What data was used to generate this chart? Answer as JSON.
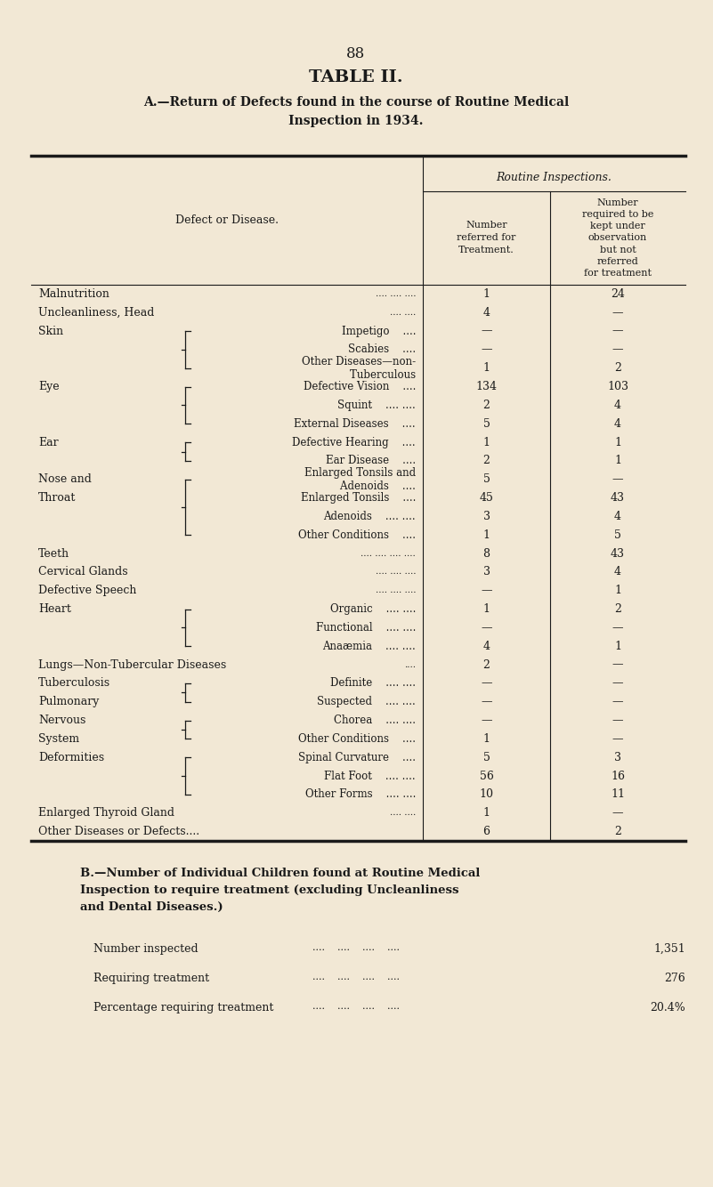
{
  "page_number": "88",
  "title": "TABLE II.",
  "subtitle": "A.—Return of Defects found in the course of Routine Medical\nInspection in 1934.",
  "bg_color": "#f2e8d5",
  "text_color": "#1a1a1a",
  "header_col1": "Defect or Disease.",
  "header_routine": "Routine Inspections.",
  "header_col2": "Number\nreferred for\nTreatment.",
  "header_col3": "Number\nrequired to be\nkept under\nobservation\nbut not\nreferred\nfor treatment",
  "rows": [
    {
      "cat": "Malnutrition",
      "dots_cat": ".... .... ....",
      "sub": "",
      "bracket": "",
      "col2": "1",
      "col3": "24"
    },
    {
      "cat": "Uncleanliness, Head",
      "dots_cat": ".... ....",
      "sub": "",
      "bracket": "",
      "col2": "4",
      "col3": "—"
    },
    {
      "cat": "Skin",
      "dots_cat": "....",
      "sub": "Impetigo    ....",
      "bracket": "top",
      "col2": "—",
      "col3": "—"
    },
    {
      "cat": "",
      "dots_cat": "",
      "sub": "Scabies    ....",
      "bracket": "mid",
      "col2": "—",
      "col3": "—"
    },
    {
      "cat": "",
      "dots_cat": "",
      "sub": "Other Diseases—non-\n        Tuberculous",
      "bracket": "bot",
      "col2": "1",
      "col3": "2"
    },
    {
      "cat": "Eye",
      "dots_cat": "....",
      "sub": "Defective Vision    ....",
      "bracket": "top",
      "col2": "134",
      "col3": "103"
    },
    {
      "cat": "",
      "dots_cat": "",
      "sub": "Squint    .... ....",
      "bracket": "mid",
      "col2": "2",
      "col3": "4"
    },
    {
      "cat": "",
      "dots_cat": "",
      "sub": "External Diseases    ....",
      "bracket": "bot",
      "col2": "5",
      "col3": "4"
    },
    {
      "cat": "Ear",
      "dots_cat": "....",
      "sub": "Defective Hearing    ....",
      "bracket": "top",
      "col2": "1",
      "col3": "1"
    },
    {
      "cat": "",
      "dots_cat": "",
      "sub": "Ear Disease    ....",
      "bracket": "bot",
      "col2": "2",
      "col3": "1"
    },
    {
      "cat": "Nose and",
      "dots_cat": "",
      "sub": "Enlarged Tonsils and\n        Adenoids    ....",
      "bracket": "top",
      "col2": "5",
      "col3": "—"
    },
    {
      "cat": "Throat",
      "dots_cat": "....",
      "sub": "Enlarged Tonsils    ....",
      "bracket": "mid",
      "col2": "45",
      "col3": "43"
    },
    {
      "cat": "",
      "dots_cat": "",
      "sub": "Adenoids    .... ....",
      "bracket": "mid",
      "col2": "3",
      "col3": "4"
    },
    {
      "cat": "",
      "dots_cat": "",
      "sub": "Other Conditions    ....",
      "bracket": "bot",
      "col2": "1",
      "col3": "5"
    },
    {
      "cat": "Teeth",
      "dots_cat": ".... .... .... ....",
      "sub": "",
      "bracket": "",
      "col2": "8",
      "col3": "43"
    },
    {
      "cat": "Cervical Glands",
      "dots_cat": ".... .... ....",
      "sub": "",
      "bracket": "",
      "col2": "3",
      "col3": "4"
    },
    {
      "cat": "Defective Speech",
      "dots_cat": ".... .... ....",
      "sub": "",
      "bracket": "",
      "col2": "—",
      "col3": "1"
    },
    {
      "cat": "Heart",
      "dots_cat": "....",
      "sub": "Organic    .... ....",
      "bracket": "top",
      "col2": "1",
      "col3": "2"
    },
    {
      "cat": "",
      "dots_cat": "",
      "sub": "Functional    .... ....",
      "bracket": "mid",
      "col2": "—",
      "col3": "—"
    },
    {
      "cat": "",
      "dots_cat": "",
      "sub": "Anaæmia    .... ....",
      "bracket": "bot",
      "col2": "4",
      "col3": "1"
    },
    {
      "cat": "Lungs—Non-Tubercular Diseases",
      "dots_cat": "....",
      "sub": "",
      "bracket": "",
      "col2": "2",
      "col3": "—"
    },
    {
      "cat": "Tuberculosis",
      "dots_cat": "",
      "sub": "Definite    .... ....",
      "bracket": "top",
      "col2": "—",
      "col3": "—"
    },
    {
      "cat": "Pulmonary",
      "dots_cat": "",
      "sub": "Suspected    .... ....",
      "bracket": "bot",
      "col2": "—",
      "col3": "—"
    },
    {
      "cat": "Nervous",
      "dots_cat": "",
      "sub": "Chorea    .... ....",
      "bracket": "top",
      "col2": "—",
      "col3": "—"
    },
    {
      "cat": "System",
      "dots_cat": "....",
      "sub": "Other Conditions    ....",
      "bracket": "bot",
      "col2": "1",
      "col3": "—"
    },
    {
      "cat": "Deformities",
      "dots_cat": "",
      "sub": "Spinal Curvature    ....",
      "bracket": "top",
      "col2": "5",
      "col3": "3"
    },
    {
      "cat": "",
      "dots_cat": "",
      "sub": "Flat Foot    .... ....",
      "bracket": "mid",
      "col2": "56",
      "col3": "16"
    },
    {
      "cat": "",
      "dots_cat": "",
      "sub": "Other Forms    .... ....",
      "bracket": "bot",
      "col2": "10",
      "col3": "11"
    },
    {
      "cat": "Enlarged Thyroid Gland",
      "dots_cat": ".... ....",
      "sub": "",
      "bracket": "",
      "col2": "1",
      "col3": "—"
    },
    {
      "cat": "Other Diseases or Defects....",
      "dots_cat": "",
      "sub": "",
      "bracket": "",
      "col2": "6",
      "col3": "2"
    }
  ],
  "section_b_title": "B.—Number of Individual Children found at Routine Medical\nInspection to require treatment (excluding Uncleanliness\nand Dental Diseases.)",
  "section_b_rows": [
    {
      "label": "Number inspected",
      "value": "1,351"
    },
    {
      "label": "Requiring treatment",
      "value": "276"
    },
    {
      "label": "Percentage requiring treatment",
      "value": "20.4%"
    }
  ]
}
